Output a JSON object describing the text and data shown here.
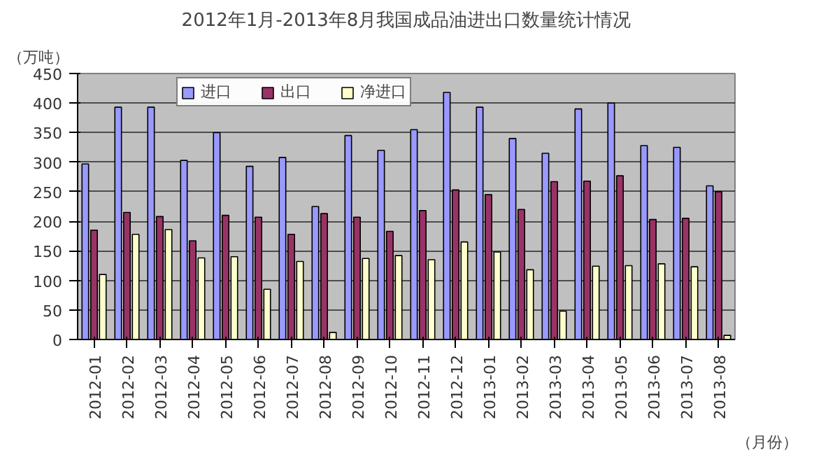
{
  "chart_data": {
    "type": "bar",
    "title": "2012年1月-2013年8月我国成品油进出口数量统计情况",
    "ylabel": "（万吨）",
    "xlabel": "（月份）",
    "categories": [
      "2012-01",
      "2012-02",
      "2012-03",
      "2012-04",
      "2012-05",
      "2012-06",
      "2012-07",
      "2012-08",
      "2012-09",
      "2012-10",
      "2012-11",
      "2012-12",
      "2013-01",
      "2013-02",
      "2013-03",
      "2013-04",
      "2013-05",
      "2013-06",
      "2013-07",
      "2013-08"
    ],
    "series": [
      {
        "name": "进口",
        "color": "#9999ff",
        "values": [
          297,
          393,
          393,
          303,
          350,
          293,
          308,
          225,
          345,
          320,
          355,
          418,
          393,
          340,
          315,
          390,
          400,
          328,
          325,
          260
        ]
      },
      {
        "name": "出口",
        "color": "#993366",
        "values": [
          185,
          215,
          208,
          167,
          210,
          207,
          178,
          213,
          207,
          183,
          218,
          253,
          245,
          220,
          267,
          268,
          277,
          203,
          205,
          250
        ]
      },
      {
        "name": "净进口",
        "color": "#ffffcc",
        "values": [
          110,
          178,
          186,
          138,
          140,
          85,
          132,
          12,
          137,
          142,
          135,
          165,
          148,
          118,
          48,
          124,
          125,
          128,
          123,
          7
        ]
      }
    ],
    "ylim": [
      0,
      450
    ],
    "yticks": [
      0,
      50,
      100,
      150,
      200,
      250,
      300,
      350,
      400,
      450
    ],
    "grid": "y",
    "legend": "top"
  }
}
